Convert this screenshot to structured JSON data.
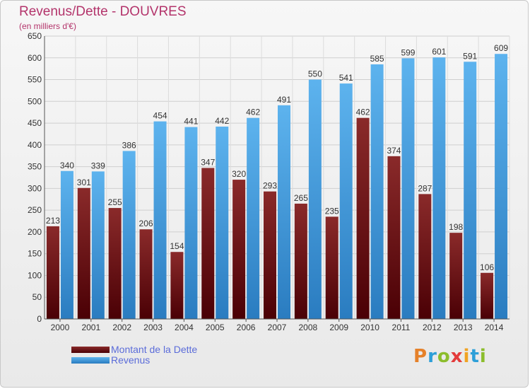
{
  "chart_data": {
    "type": "bar",
    "title": "Revenus/Dette - DOUVRES",
    "subtitle": "(en milliers d'€)",
    "categories": [
      "2000",
      "2001",
      "2002",
      "2003",
      "2004",
      "2005",
      "2006",
      "2007",
      "2008",
      "2009",
      "2010",
      "2011",
      "2012",
      "2013",
      "2014"
    ],
    "series": [
      {
        "name": "Montant de la Dette",
        "color": "#6b0f14",
        "values": [
          213,
          301,
          255,
          206,
          154,
          347,
          320,
          293,
          265,
          235,
          462,
          374,
          287,
          198,
          106
        ]
      },
      {
        "name": "Revenus",
        "color": "#4aa3e6",
        "values": [
          340,
          339,
          386,
          454,
          441,
          442,
          462,
          491,
          550,
          541,
          585,
          599,
          601,
          591,
          609
        ]
      }
    ],
    "ylim": [
      0,
      650
    ],
    "yticks": [
      0,
      50,
      100,
      150,
      200,
      250,
      300,
      350,
      400,
      450,
      500,
      550,
      600,
      650
    ],
    "grid": true,
    "legend_position": "bottom-left"
  },
  "brand": {
    "letters": [
      "P",
      "r",
      "o",
      "x",
      "i",
      "t",
      "i"
    ]
  }
}
